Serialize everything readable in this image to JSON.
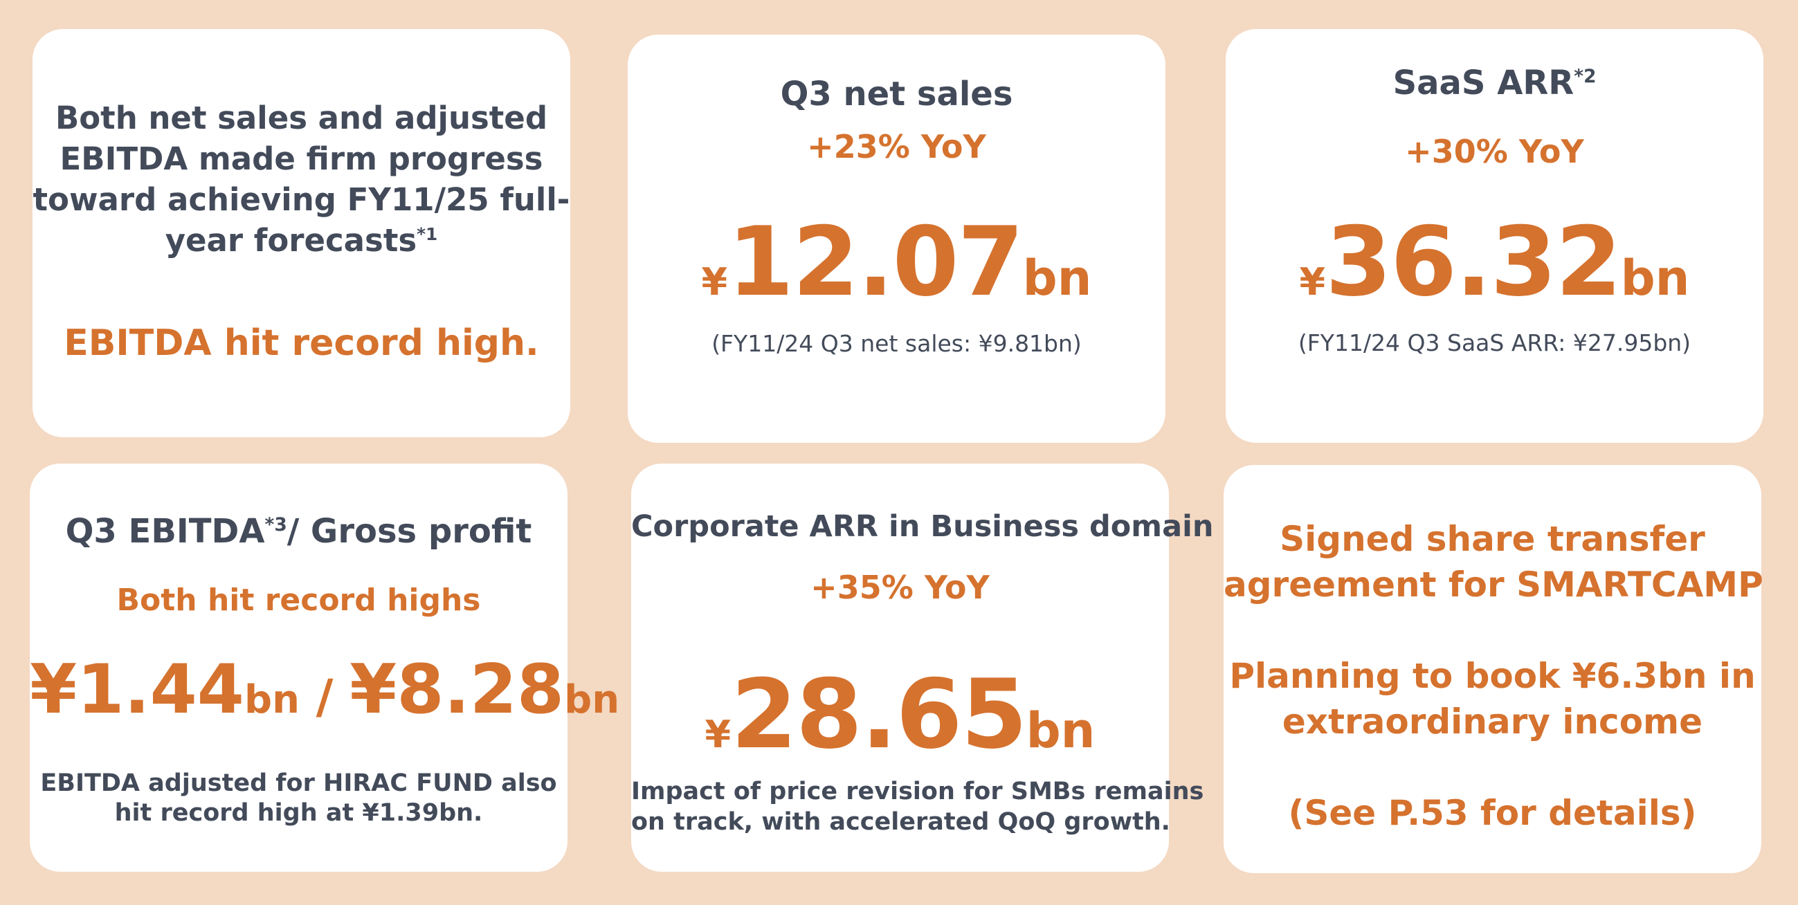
{
  "card1": {
    "lines": [
      "Both net sales and adjusted",
      "EBITDA made firm progress",
      "toward achieving FY11/25 full-",
      "year forecasts"
    ],
    "note": "*1",
    "highlight": "EBITDA hit record high."
  },
  "card2": {
    "title": "Q3 net sales",
    "growth": "+23% YoY",
    "currency": "¥",
    "value": "12.07",
    "unit": "bn",
    "footnote": "(FY11/24 Q3 net sales: ¥9.81bn)"
  },
  "card3": {
    "title": "SaaS ARR",
    "note": "*2",
    "growth": "+30% YoY",
    "currency": "¥",
    "value": "36.32",
    "unit": "bn",
    "footnote": "(FY11/24 Q3 SaaS ARR: ¥27.95bn)"
  },
  "card4": {
    "title_a": "Q3 EBITDA",
    "note": "*3",
    "title_b": "/ Gross profit",
    "subtitle": "Both hit record highs",
    "value1": "¥1.44",
    "unit1": "bn",
    "sep": " / ",
    "value2": "¥8.28",
    "unit2": "bn",
    "footnote": [
      "EBITDA adjusted for HIRAC FUND also",
      "hit record high at ¥1.39bn."
    ]
  },
  "card5": {
    "title": "Corporate ARR in Business domain",
    "growth": "+35% YoY",
    "currency": "¥",
    "value": "28.65",
    "unit": "bn",
    "footnote": [
      "Impact of price revision for SMBs remains",
      "on track, with accelerated QoQ growth."
    ]
  },
  "card6": {
    "lines": [
      "Signed share transfer",
      "agreement for SMARTCAMP",
      "Planning to book ¥6.3bn in",
      "extraordinary income",
      "(See P.53 for details)"
    ]
  }
}
